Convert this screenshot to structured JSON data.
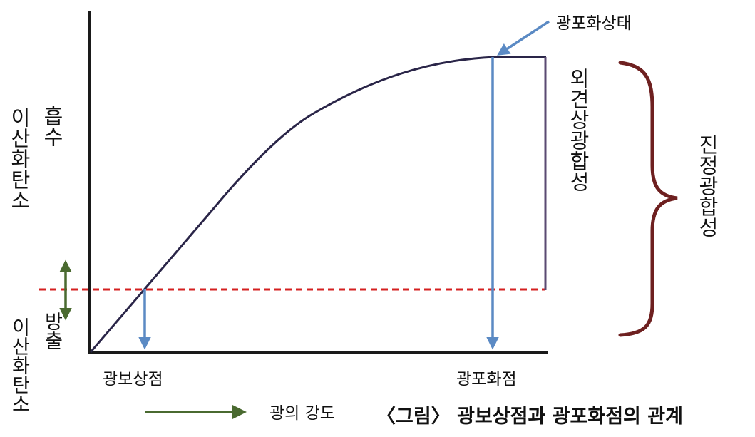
{
  "labels": {
    "absorb_word": "흡수",
    "absorb_co2": "이산화탄소",
    "emit_word": "방출",
    "emit_co2": "이산화탄소",
    "compensation_point": "광보상점",
    "saturation_point": "광포화점",
    "light_intensity": "광의 강도",
    "saturation_state": "광포화상태",
    "apparent_photosynthesis": "외견상광합성",
    "true_photosynthesis": "진정광합성",
    "caption": "〈그림〉 광보상점과 광포화점의 관계"
  },
  "colors": {
    "axis": "#1a1a1a",
    "curve": "#2a2548",
    "blue_arrow": "#5b8ac4",
    "red_dashed": "#d42020",
    "green_arrow": "#4a6a30",
    "brace": "#6e2020",
    "apparent_bar": "#5a4a72"
  }
}
